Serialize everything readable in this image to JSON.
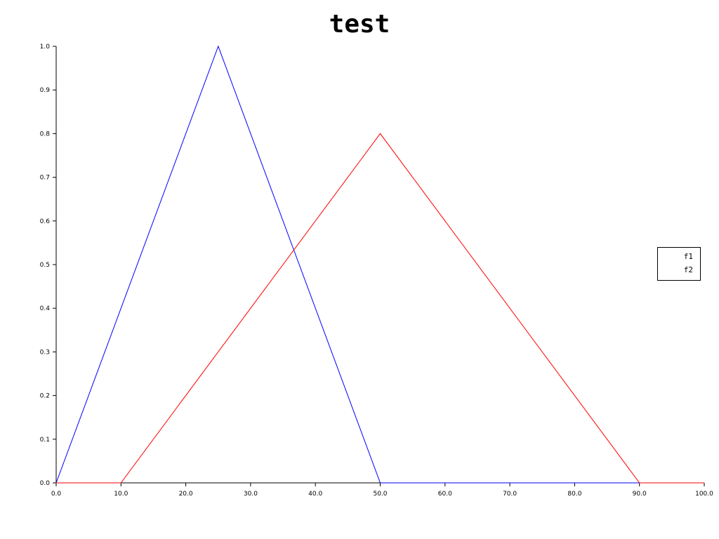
{
  "chart_data": {
    "type": "line",
    "title": "test",
    "xlabel": "",
    "ylabel": "",
    "xlim": [
      0,
      100
    ],
    "ylim": [
      0,
      1
    ],
    "x_ticks": [
      "0.0",
      "10.0",
      "20.0",
      "30.0",
      "40.0",
      "50.0",
      "60.0",
      "70.0",
      "80.0",
      "90.0",
      "100.0"
    ],
    "y_ticks": [
      "0.0",
      "0.1",
      "0.2",
      "0.3",
      "0.4",
      "0.5",
      "0.6",
      "0.7",
      "0.8",
      "0.9",
      "1.0"
    ],
    "grid": false,
    "legend_position": "right",
    "series": [
      {
        "name": "f1",
        "color": "#0000ff",
        "x": [
          0,
          25,
          50,
          100
        ],
        "y": [
          0,
          1.0,
          0,
          0
        ]
      },
      {
        "name": "f2",
        "color": "#ff0000",
        "x": [
          0,
          10,
          50,
          90,
          100
        ],
        "y": [
          0,
          0,
          0.8,
          0,
          0
        ]
      }
    ]
  }
}
